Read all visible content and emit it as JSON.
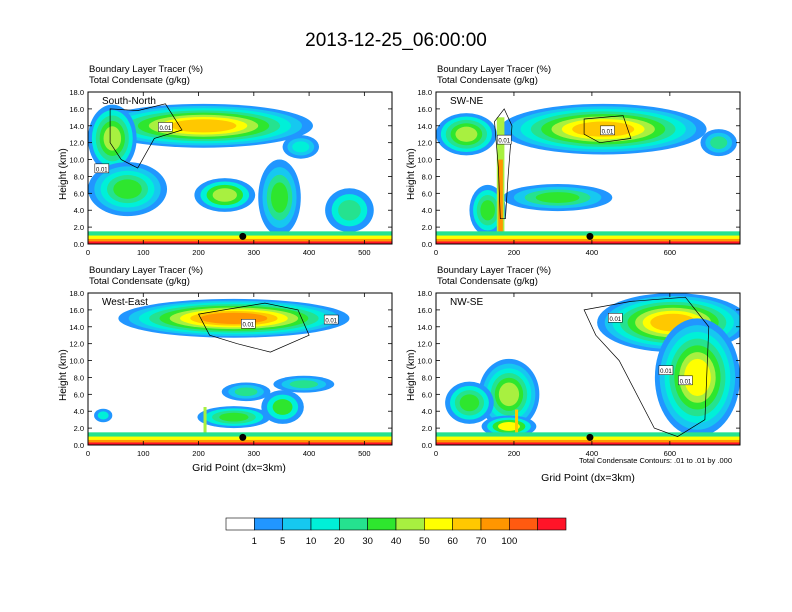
{
  "title": "2013-12-25_06:00:00",
  "colorbar": {
    "labels": [
      "1",
      "5",
      "10",
      "20",
      "30",
      "40",
      "50",
      "60",
      "70",
      "100"
    ],
    "colors": [
      "#ffffff",
      "#2196ff",
      "#16c8f0",
      "#00f0d8",
      "#25e28f",
      "#2ee62e",
      "#a8f040",
      "#ffff00",
      "#ffc800",
      "#ff9600",
      "#ff5a10",
      "#ff1428"
    ]
  },
  "contour_note": "Total Condensate Contours: .01 to .01 by .000",
  "chart_data": [
    {
      "type": "heatmap",
      "label": "South-North",
      "title_line1": "Boundary Layer Tracer   (%)",
      "title_line2": "Total Condensate   (g/kg)",
      "ylabel": "Height (km)",
      "xlabel": "",
      "xlim": [
        0,
        550
      ],
      "ylim": [
        0,
        18
      ],
      "xticks": [
        "0",
        "100",
        "200",
        "300",
        "400",
        "500"
      ],
      "xtick_values": [
        0,
        100,
        200,
        300,
        400,
        500
      ],
      "yticks": [
        "0.0",
        "2.0",
        "4.0",
        "6.0",
        "8.0",
        "10.0",
        "12.0",
        "14.0",
        "16.0",
        "18.0"
      ],
      "marker_x": 280,
      "contour_labels": [
        {
          "text": "0.01",
          "x": 140,
          "y": 13.8
        },
        {
          "text": "0.01",
          "x": 25,
          "y": 8.9
        }
      ]
    },
    {
      "type": "heatmap",
      "label": "SW-NE",
      "title_line1": "Boundary Layer Tracer   (%)",
      "title_line2": "Total Condensate   (g/kg)",
      "ylabel": "Height (km)",
      "xlabel": "",
      "xlim": [
        0,
        780
      ],
      "ylim": [
        0,
        18
      ],
      "xticks": [
        "0",
        "200",
        "400",
        "600"
      ],
      "xtick_values": [
        0,
        200,
        400,
        600
      ],
      "yticks": [
        "0.0",
        "2.0",
        "4.0",
        "6.0",
        "8.0",
        "10.0",
        "12.0",
        "14.0",
        "16.0",
        "18.0"
      ],
      "marker_x": 395,
      "contour_labels": [
        {
          "text": "0.01",
          "x": 175,
          "y": 12.3
        },
        {
          "text": "0.01",
          "x": 440,
          "y": 13.4
        }
      ]
    },
    {
      "type": "heatmap",
      "label": "West-East",
      "title_line1": "Boundary Layer Tracer   (%)",
      "title_line2": "Total Condensate   (g/kg)",
      "ylabel": "Height (km)",
      "xlabel": "Grid Point (dx=3km)",
      "xlim": [
        0,
        550
      ],
      "ylim": [
        0,
        18
      ],
      "xticks": [
        "0",
        "100",
        "200",
        "300",
        "400",
        "500"
      ],
      "xtick_values": [
        0,
        100,
        200,
        300,
        400,
        500
      ],
      "yticks": [
        "0.0",
        "2.0",
        "4.0",
        "6.0",
        "8.0",
        "10.0",
        "12.0",
        "14.0",
        "16.0",
        "18.0"
      ],
      "marker_x": 280,
      "contour_labels": [
        {
          "text": "0.01",
          "x": 290,
          "y": 14.3
        },
        {
          "text": "0.01",
          "x": 440,
          "y": 14.8
        }
      ]
    },
    {
      "type": "heatmap",
      "label": "NW-SE",
      "title_line1": "Boundary Layer Tracer   (%)",
      "title_line2": "Total Condensate   (g/kg)",
      "ylabel": "Height (km)",
      "xlabel": "Grid Point (dx=3km)",
      "xlim": [
        0,
        780
      ],
      "ylim": [
        0,
        18
      ],
      "xticks": [
        "0",
        "200",
        "400",
        "600"
      ],
      "xtick_values": [
        0,
        200,
        400,
        600
      ],
      "yticks": [
        "0.0",
        "2.0",
        "4.0",
        "6.0",
        "8.0",
        "10.0",
        "12.0",
        "14.0",
        "16.0",
        "18.0"
      ],
      "marker_x": 395,
      "contour_labels": [
        {
          "text": "0.01",
          "x": 460,
          "y": 15.0
        },
        {
          "text": "0.01",
          "x": 590,
          "y": 8.8
        },
        {
          "text": "0.01",
          "x": 640,
          "y": 7.6
        }
      ]
    }
  ]
}
